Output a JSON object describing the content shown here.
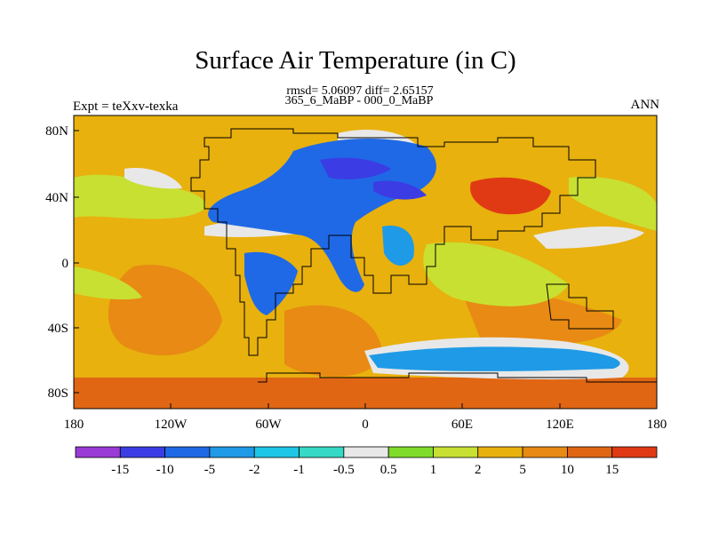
{
  "title": "Surface Air Temperature (in C)",
  "stats": "rmsd= 5.06097 diff= 2.65157",
  "comparison": "365_6_MaBP - 000_0_MaBP",
  "experiment": "Expt = teXxv-texka",
  "season": "ANN",
  "y_axis": {
    "ticks": [
      "80N",
      "40N",
      "0",
      "40S",
      "80S"
    ]
  },
  "x_axis": {
    "ticks": [
      "180",
      "120W",
      "60W",
      "0",
      "60E",
      "120E",
      "180"
    ]
  },
  "colorbar": {
    "labels": [
      "-15",
      "-10",
      "-5",
      "-2",
      "-1",
      "-0.5",
      "0.5",
      "1",
      "2",
      "5",
      "10",
      "15"
    ],
    "colors": [
      "#9a3ad7",
      "#3c3ce4",
      "#1f69e6",
      "#1f9ae6",
      "#1fc6e6",
      "#36d9c4",
      "#e8e8e8",
      "#7fdc2a",
      "#c8e032",
      "#e8b10e",
      "#e88a14",
      "#e06614",
      "#e03a14"
    ]
  },
  "palette": {
    "warm1": "#e8b10e",
    "warm2": "#e88a14",
    "warm3": "#e06614",
    "hot": "#e03a14",
    "yellowgreen": "#c8e032",
    "green": "#7fdc2a",
    "zero": "#e8e8e8",
    "cool1": "#1fc6e6",
    "cool2": "#1f9ae6",
    "cool3": "#1f69e6",
    "cool4": "#3c3ce4"
  }
}
